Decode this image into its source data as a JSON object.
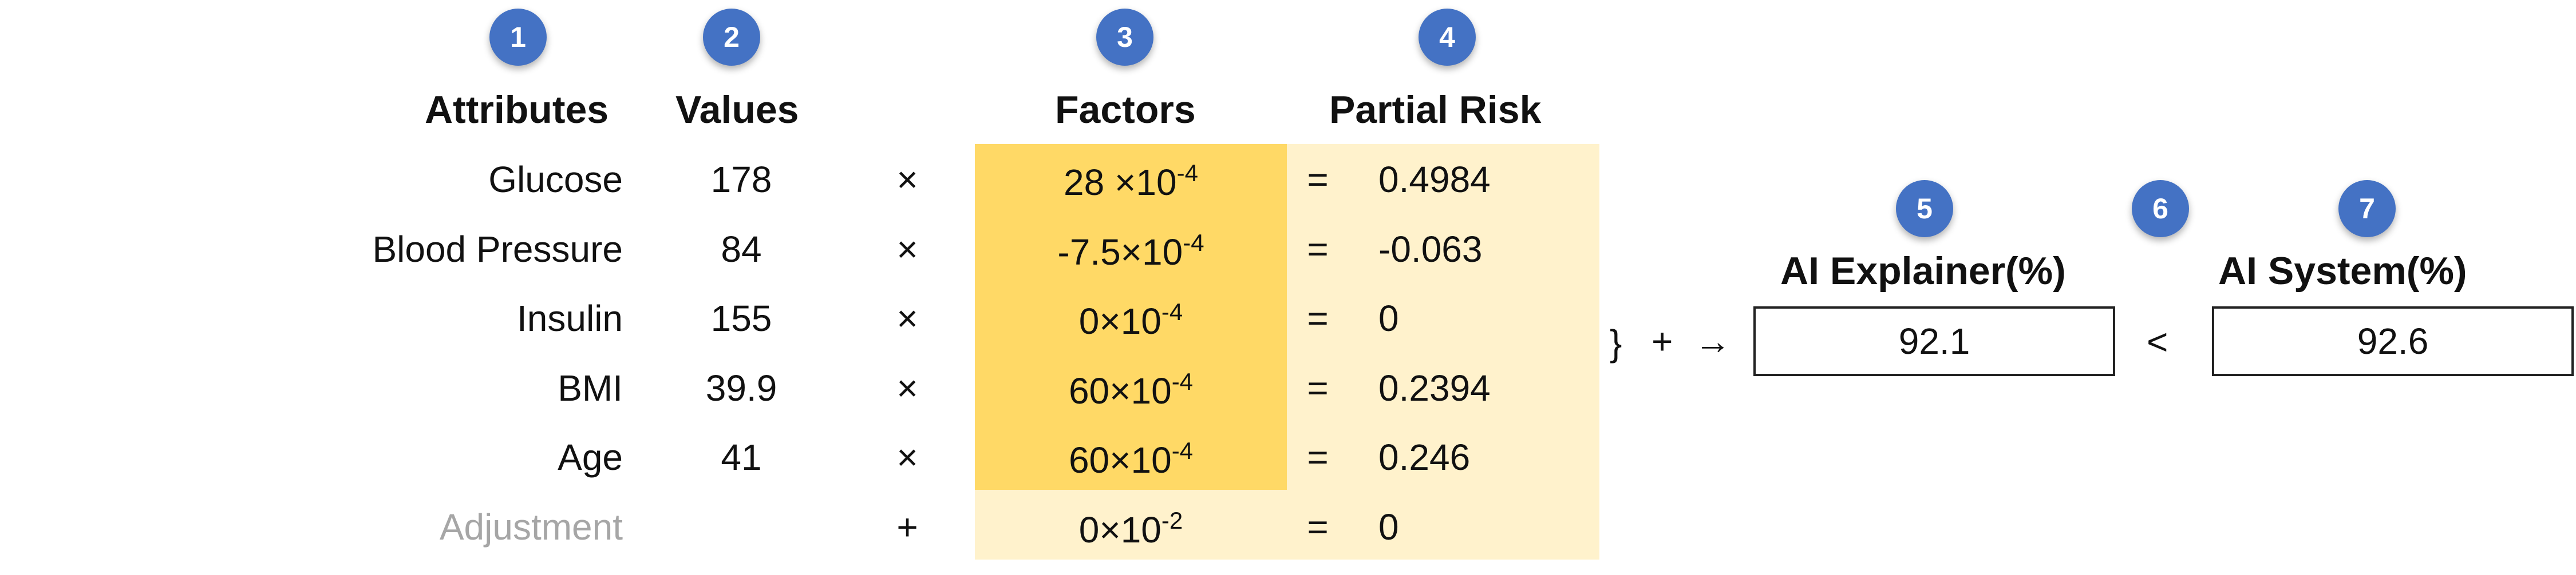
{
  "badges": [
    "1",
    "2",
    "3",
    "4",
    "5",
    "6",
    "7"
  ],
  "headers": {
    "attributes": "Attributes",
    "values": "Values",
    "factors": "Factors",
    "partial_risk": "Partial Risk",
    "ai_explainer": "AI Explainer(%)",
    "ai_system": "AI System(%)"
  },
  "rows": [
    {
      "attribute": "Glucose",
      "value": "178",
      "op": "×",
      "factor_mant": "28 ×10",
      "factor_exp": "-4",
      "eq": "=",
      "partial": "0.4984"
    },
    {
      "attribute": "Blood Pressure",
      "value": "84",
      "op": "×",
      "factor_mant": "-7.5×10",
      "factor_exp": "-4",
      "eq": "=",
      "partial": "-0.063"
    },
    {
      "attribute": "Insulin",
      "value": "155",
      "op": "×",
      "factor_mant": "0×10",
      "factor_exp": "-4",
      "eq": "=",
      "partial": "0"
    },
    {
      "attribute": "BMI",
      "value": "39.9",
      "op": "×",
      "factor_mant": "60×10",
      "factor_exp": "-4",
      "eq": "=",
      "partial": "0.2394"
    },
    {
      "attribute": "Age",
      "value": "41",
      "op": "×",
      "factor_mant": "60×10",
      "factor_exp": "-4",
      "eq": "=",
      "partial": "0.246"
    },
    {
      "attribute": "Adjustment",
      "value": "",
      "op": "+",
      "factor_mant": "0×10",
      "factor_exp": "-2",
      "eq": "=",
      "partial": "0"
    }
  ],
  "sum_symbols": {
    "brace": "}",
    "plus": "+",
    "arrow": "→"
  },
  "explainer_value": "92.1",
  "comparison": "<",
  "system_value": "92.6",
  "colors": {
    "badge": "#4472C4",
    "factors_fill": "#FFD966",
    "light_fill": "#FFF2CC",
    "muted_text": "#A6A6A6"
  }
}
